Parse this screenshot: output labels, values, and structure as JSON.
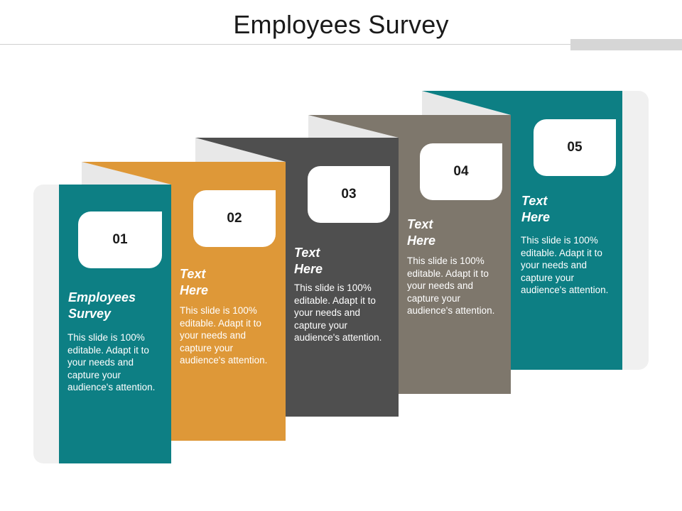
{
  "title": "Employees Survey",
  "colors": {
    "teal": "#0d7f84",
    "orange": "#de9838",
    "charcoal": "#4f4f4f",
    "taupe": "#7e776c",
    "panel": "#f0f0f0",
    "fold": "#e8e8e8"
  },
  "steps": [
    {
      "number": "01",
      "heading_line1": "Employees",
      "heading_line2": "Survey",
      "body": "This slide is 100% editable. Adapt it to your needs and capture your audience's attention."
    },
    {
      "number": "02",
      "heading_line1": "Text",
      "heading_line2": "Here",
      "body": "This slide is 100% editable. Adapt it to your needs and capture your audience's attention."
    },
    {
      "number": "03",
      "heading_line1": "Text",
      "heading_line2": "Here",
      "body": "This slide is 100% editable. Adapt it to your needs and capture your audience's attention."
    },
    {
      "number": "04",
      "heading_line1": "Text",
      "heading_line2": "Here",
      "body": "This slide is 100% editable. Adapt it to your needs and capture your audience's attention."
    },
    {
      "number": "05",
      "heading_line1": "Text",
      "heading_line2": "Here",
      "body": "This slide is 100% editable. Adapt it to your needs and capture your audience's attention."
    }
  ]
}
